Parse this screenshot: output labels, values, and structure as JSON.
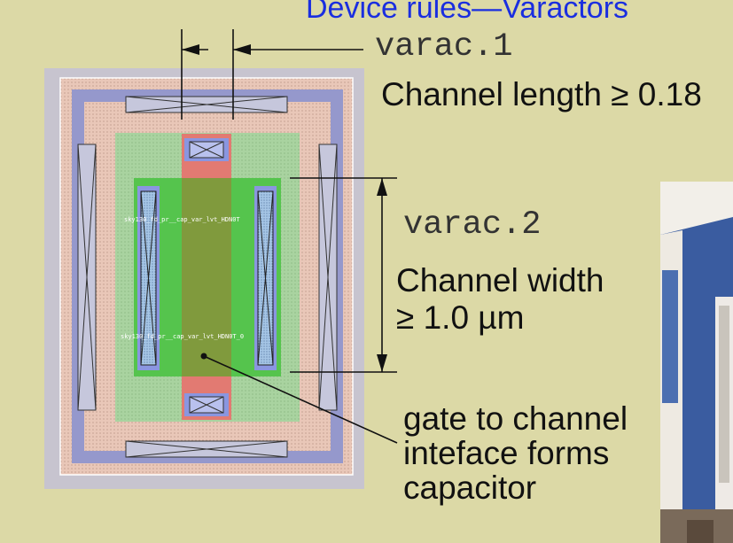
{
  "slide": {
    "title": "Device rules—Varactors",
    "rule1": {
      "code": "varac.1",
      "text": "Channel length ≥ 0.18"
    },
    "rule2": {
      "code": "varac.2",
      "line1": "Channel width",
      "line2": "≥ 1.0 µm"
    },
    "note": {
      "line1": "gate to channel",
      "line2": "inteface forms",
      "line3": "capacitor"
    },
    "layout_labels": [
      "sky130_fd_pr__cap_var_lvt_HDN0T",
      "sky130_fd_pr__cap_var_lvt_HDN0T_0"
    ]
  },
  "colors": {
    "background": "#dcd9a6",
    "title": "#1a2ee0",
    "diffusion": "#55c44d",
    "poly": "#e27a72",
    "gate": "#7a9c3a",
    "contact": "#8a96e0",
    "nwell_ring": "#9598cc"
  },
  "icons": [
    "dimension-arrow",
    "contact-cross",
    "video-thumbnail"
  ]
}
